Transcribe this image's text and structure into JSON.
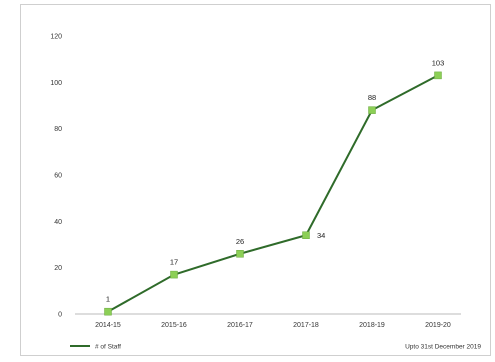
{
  "chart_data": {
    "type": "line",
    "categories": [
      "2014-15",
      "2015-16",
      "2016-17",
      "2017-18",
      "2018-19",
      "2019-20"
    ],
    "series": [
      {
        "name": "# of Staff",
        "values": [
          1,
          17,
          26,
          34,
          88,
          103
        ],
        "color": "#2f6b2a",
        "marker_color": "#8ccf56"
      }
    ],
    "data_labels": [
      "1",
      "17",
      "26",
      "34",
      "88",
      "103"
    ],
    "ylim": [
      0,
      120
    ],
    "yticks": [
      0,
      20,
      40,
      60,
      80,
      100,
      120
    ],
    "grid": false,
    "legend": "bottom-left",
    "note": "Upto 31st December 2019"
  }
}
